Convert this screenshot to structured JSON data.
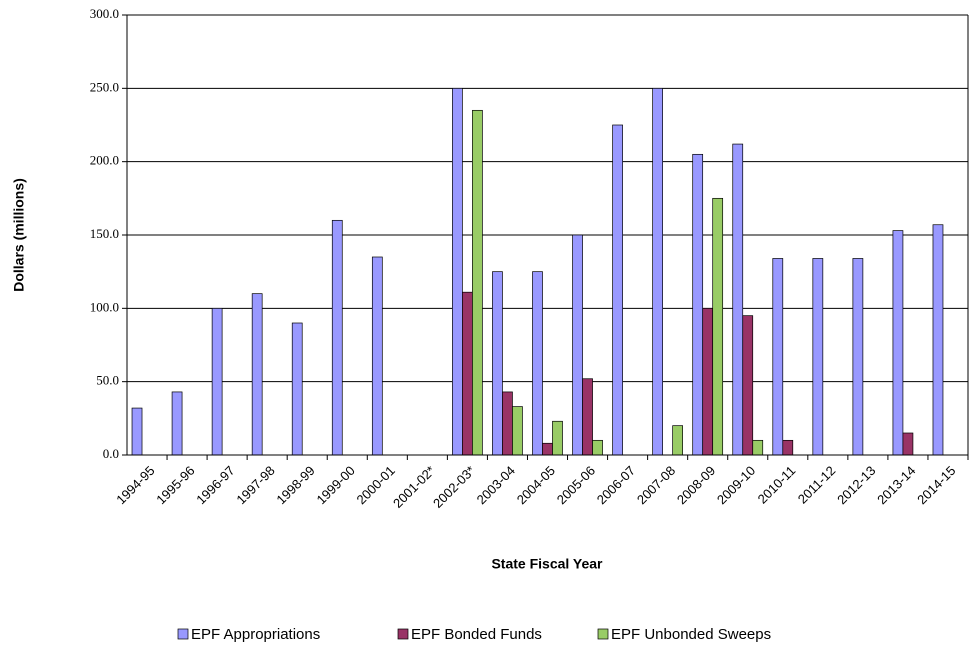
{
  "chart_data": {
    "type": "bar",
    "x_label": "State Fiscal Year",
    "y_label": "Dollars (millions)",
    "categories": [
      "1994-95",
      "1995-96",
      "1996-97",
      "1997-98",
      "1998-99",
      "1999-00",
      "2000-01",
      "2001-02*",
      "2002-03*",
      "2003-04",
      "2004-05",
      "2005-06",
      "2006-07",
      "2007-08",
      "2008-09",
      "2009-10",
      "2010-11",
      "2011-12",
      "2012-13",
      "2013-14",
      "2014-15"
    ],
    "series": [
      {
        "name": "EPF Appropriations",
        "color": "#9999ff",
        "values": [
          32,
          43,
          100,
          110,
          90,
          160,
          135,
          0,
          250,
          125,
          125,
          150,
          225,
          250,
          205,
          212,
          134,
          134,
          134,
          153,
          157
        ]
      },
      {
        "name": "EPF Bonded Funds",
        "color": "#993366",
        "values": [
          0,
          0,
          0,
          0,
          0,
          0,
          0,
          0,
          111,
          43,
          8,
          52,
          0,
          0,
          100,
          95,
          10,
          0,
          0,
          15,
          0
        ]
      },
      {
        "name": "EPF Unbonded Sweeps",
        "color": "#99cc66",
        "values": [
          0,
          0,
          0,
          0,
          0,
          0,
          0,
          0,
          235,
          33,
          23,
          10,
          0,
          20,
          175,
          10,
          0,
          0,
          0,
          0,
          0
        ]
      }
    ],
    "ylim": [
      0,
      300
    ],
    "yticks": [
      {
        "value": 0,
        "label": "0.0"
      },
      {
        "value": 50,
        "label": "50.0"
      },
      {
        "value": 100,
        "label": "100.0"
      },
      {
        "value": 150,
        "label": "150.0"
      },
      {
        "value": 200,
        "label": "200.0"
      },
      {
        "value": 250,
        "label": "250.0"
      },
      {
        "value": 300,
        "label": "300.0"
      }
    ],
    "grid": true,
    "legend": "bottom"
  }
}
